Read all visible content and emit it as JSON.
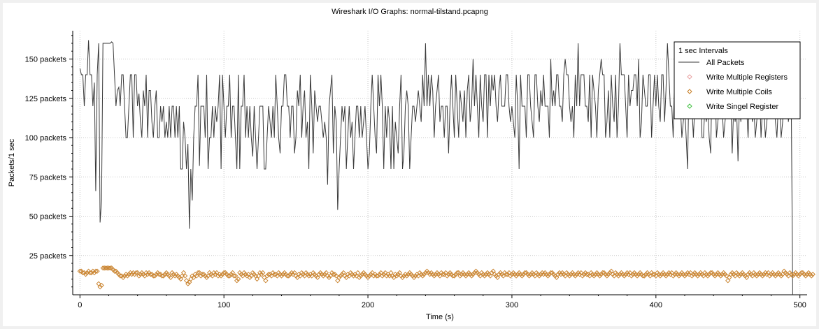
{
  "chart_data": {
    "type": "line",
    "title": "Wireshark I/O Graphs: normal-tilstand.pcapng",
    "xlabel": "Time (s)",
    "ylabel": "Packets/1 sec",
    "xlim": [
      -5,
      505
    ],
    "ylim": [
      0,
      168
    ],
    "x_ticks": [
      0,
      100,
      200,
      300,
      400,
      500
    ],
    "y_ticks": [
      25,
      50,
      75,
      100,
      125,
      150
    ],
    "y_tick_labels": [
      "25 packets",
      "50 packets",
      "75 packets",
      "100 packets",
      "125 packets",
      "150 packets"
    ],
    "grid": true,
    "legend": {
      "position": "top-right",
      "title": "1 sec Intervals",
      "entries": [
        {
          "name": "All Packets",
          "style": "line",
          "color": "#3a3a3a"
        },
        {
          "name": "Write Multiple Registers",
          "style": "diamond",
          "color": "#e8a0a0"
        },
        {
          "name": "Write Multiple Coils",
          "style": "diamond",
          "color": "#c8802a"
        },
        {
          "name": "Write Singel Register",
          "style": "diamond",
          "color": "#40c040"
        }
      ]
    },
    "series": [
      {
        "name": "All Packets",
        "x_start": 0,
        "x_step": 1,
        "values": [
          144,
          140,
          140,
          120,
          140,
          140,
          162,
          140,
          140,
          120,
          135,
          66,
          140,
          160,
          46,
          60,
          160,
          160,
          160,
          160,
          160,
          160,
          161,
          160,
          140,
          120,
          130,
          132,
          120,
          140,
          140,
          120,
          100,
          100,
          120,
          140,
          140,
          100,
          140,
          140,
          120,
          128,
          110,
          100,
          130,
          120,
          140,
          100,
          130,
          130,
          110,
          100,
          120,
          130,
          100,
          100,
          120,
          110,
          120,
          100,
          110,
          100,
          120,
          100,
          120,
          120,
          100,
          120,
          100,
          120,
          80,
          80,
          110,
          100,
          80,
          96,
          42,
          80,
          60,
          100,
          120,
          120,
          140,
          82,
          120,
          120,
          120,
          100,
          140,
          80,
          100,
          100,
          120,
          100,
          120,
          110,
          120,
          140,
          80,
          140,
          120,
          100,
          120,
          120,
          140,
          100,
          120,
          120,
          100,
          80,
          140,
          80,
          120,
          120,
          140,
          100,
          120,
          100,
          120,
          100,
          88,
          120,
          100,
          80,
          100,
          120,
          120,
          120,
          80,
          80,
          100,
          120,
          110,
          100,
          120,
          100,
          140,
          120,
          100,
          90,
          120,
          120,
          140,
          140,
          120,
          120,
          100,
          120,
          120,
          90,
          100,
          130,
          120,
          140,
          100,
          120,
          130,
          100,
          110,
          80,
          140,
          120,
          90,
          130,
          120,
          110,
          120,
          120,
          110,
          100,
          110,
          100,
          70,
          120,
          130,
          140,
          90,
          120,
          110,
          54,
          80,
          100,
          120,
          110,
          120,
          80,
          100,
          120,
          100,
          110,
          80,
          100,
          120,
          120,
          100,
          120,
          100,
          110,
          120,
          100,
          80,
          90,
          120,
          140,
          120,
          100,
          90,
          140,
          120,
          140,
          120,
          80,
          120,
          100,
          120,
          110,
          80,
          120,
          80,
          110,
          100,
          90,
          120,
          140,
          80,
          90,
          120,
          130,
          120,
          80,
          100,
          120,
          120,
          110,
          120,
          130,
          120,
          110,
          140,
          120,
          160,
          120,
          140,
          120,
          140,
          130,
          100,
          120,
          130,
          140,
          110,
          120,
          120,
          100,
          120,
          120,
          90,
          120,
          140,
          120,
          100,
          140,
          120,
          100,
          130,
          120,
          110,
          130,
          100,
          130,
          140,
          110,
          120,
          150,
          120,
          140,
          120,
          100,
          140,
          120,
          110,
          140,
          140,
          100,
          140,
          120,
          140,
          130,
          140,
          120,
          110,
          130,
          140,
          120,
          120,
          120,
          140,
          140,
          120,
          110,
          120,
          110,
          100,
          140,
          120,
          80,
          140,
          120,
          120,
          120,
          100,
          140,
          140,
          120,
          110,
          100,
          140,
          140,
          120,
          110,
          130,
          120,
          140,
          120,
          120,
          120,
          100,
          150,
          120,
          130,
          120,
          140,
          140,
          120,
          120,
          110,
          140,
          150,
          140,
          140,
          120,
          110,
          120,
          100,
          140,
          120,
          160,
          120,
          140,
          140,
          140,
          120,
          120,
          110,
          140,
          100,
          140,
          130,
          120,
          100,
          130,
          140,
          150,
          140,
          140,
          100,
          110,
          130,
          100,
          140,
          120,
          110,
          140,
          100,
          120,
          160,
          140,
          140,
          140,
          120,
          100,
          140,
          120,
          130,
          130,
          140,
          140,
          120,
          150,
          100,
          110,
          140,
          130,
          120,
          120,
          140,
          140,
          100,
          120,
          140,
          120,
          140,
          120,
          110,
          140,
          140,
          110,
          130,
          160,
          140,
          120,
          120,
          100,
          140,
          120,
          120,
          140,
          120,
          100,
          110,
          120,
          100,
          80,
          140,
          120,
          120,
          100,
          120,
          120,
          130,
          120,
          140,
          100,
          100,
          120,
          110,
          120,
          100,
          90,
          140,
          120,
          140,
          100,
          110,
          120,
          140,
          120,
          100,
          110,
          120,
          140,
          130,
          120,
          90,
          120,
          110,
          120,
          85,
          120,
          110,
          140,
          120,
          140,
          120,
          100,
          130,
          120,
          110,
          120,
          100,
          110,
          120,
          130,
          100,
          120,
          120,
          100,
          110,
          120,
          140,
          130,
          120,
          140,
          110,
          100,
          120,
          120,
          100,
          110,
          130,
          120,
          140,
          110,
          120,
          120,
          0
        ]
      },
      {
        "name": "Write Multiple Coils",
        "x_start": 0,
        "x_step": 1,
        "values": [
          15,
          15,
          14,
          14,
          13,
          14,
          15,
          14,
          14,
          15,
          14,
          15,
          15,
          7,
          5,
          6,
          17,
          17,
          17,
          17,
          17,
          17,
          17,
          16,
          15,
          15,
          14,
          13,
          12,
          12,
          11,
          12,
          13,
          12,
          13,
          14,
          13,
          14,
          13,
          14,
          14,
          12,
          13,
          14,
          13,
          12,
          14,
          13,
          14,
          13,
          13,
          12,
          12,
          13,
          14,
          13,
          13,
          12,
          12,
          13,
          14,
          13,
          12,
          11,
          14,
          13,
          12,
          13,
          12,
          11,
          10,
          12,
          14,
          12,
          9,
          7,
          8,
          10,
          12,
          11,
          13,
          12,
          14,
          14,
          12,
          13,
          13,
          12,
          11,
          12,
          14,
          13,
          12,
          14,
          13,
          14,
          12,
          13,
          12,
          13,
          14,
          14,
          13,
          12,
          12,
          13,
          14,
          12,
          12,
          9,
          10,
          14,
          13,
          12,
          14,
          13,
          12,
          13,
          11,
          12,
          14,
          13,
          12,
          10,
          12,
          14,
          13,
          14,
          11,
          9,
          12,
          13,
          13,
          12,
          14,
          13,
          13,
          12,
          14,
          13,
          12,
          13,
          14,
          13,
          12,
          12,
          13,
          14,
          13,
          14,
          12,
          11,
          13,
          12,
          14,
          13,
          12,
          14,
          13,
          12,
          13,
          12,
          14,
          13,
          12,
          11,
          13,
          14,
          13,
          12,
          13,
          14,
          12,
          11,
          12,
          14,
          13,
          13,
          12,
          9,
          11,
          12,
          13,
          14,
          12,
          11,
          13,
          12,
          14,
          13,
          12,
          13,
          12,
          14,
          11,
          12,
          13,
          14,
          13,
          12,
          11,
          12,
          13,
          14,
          12,
          13,
          12,
          12,
          13,
          14,
          12,
          13,
          14,
          12,
          13,
          12,
          14,
          12,
          11,
          13,
          12,
          13,
          14,
          12,
          11,
          12,
          13,
          12,
          13,
          14,
          13,
          12,
          11,
          12,
          13,
          12,
          14,
          13,
          12,
          13,
          14,
          15,
          14,
          13,
          14,
          13,
          12,
          13,
          14,
          13,
          12,
          14,
          13,
          13,
          14,
          12,
          13,
          14,
          13,
          12,
          12,
          13,
          14,
          14,
          12,
          13,
          14,
          13,
          12,
          13,
          14,
          13,
          12,
          13,
          14,
          15,
          14,
          13,
          12,
          14,
          13,
          12,
          13,
          14,
          13,
          12,
          14,
          15,
          13,
          12,
          11,
          13,
          14,
          13,
          12,
          14,
          13,
          13,
          14,
          12,
          13,
          14,
          13,
          12,
          13,
          14,
          13,
          12,
          13,
          14,
          14,
          13,
          12,
          13,
          14,
          13,
          12,
          14,
          13,
          12,
          13,
          14,
          13,
          14,
          13,
          12,
          13,
          14,
          14,
          13,
          12,
          11,
          13,
          14,
          13,
          14,
          13,
          12,
          14,
          13,
          12,
          13,
          14,
          13,
          12,
          13,
          14,
          13,
          14,
          12,
          13,
          14,
          13,
          13,
          12,
          14,
          13,
          12,
          13,
          14,
          13,
          12,
          13,
          14,
          14,
          13,
          12,
          13,
          14,
          15,
          13,
          12,
          14,
          13,
          12,
          13,
          14,
          13,
          12,
          13,
          14,
          13,
          14,
          12,
          13,
          14,
          13,
          12,
          13,
          14,
          13,
          12,
          12,
          13,
          14,
          13,
          12,
          14,
          13,
          13,
          12,
          14,
          13,
          12,
          13,
          14,
          13,
          12,
          13,
          14,
          13,
          14,
          12,
          13,
          14,
          13,
          12,
          13,
          14,
          13,
          12,
          13,
          14,
          13,
          14,
          12,
          13,
          14,
          13,
          12,
          13,
          14,
          13,
          12,
          14,
          13,
          12,
          13,
          14,
          14,
          13,
          12,
          13,
          14,
          13,
          12,
          13,
          14,
          13,
          12,
          9,
          11,
          13,
          14,
          13,
          12,
          14,
          13,
          12,
          13,
          14,
          13,
          12,
          11,
          13,
          14,
          13,
          12,
          14,
          13,
          12,
          13,
          14,
          13,
          12,
          13,
          14,
          13,
          14,
          12,
          13,
          14,
          13,
          12,
          13,
          14,
          13,
          12,
          13,
          15,
          14,
          13,
          12,
          14,
          13,
          12,
          13,
          14,
          13,
          12,
          13,
          14,
          14,
          13,
          12,
          13,
          14,
          13,
          12,
          13
        ]
      }
    ]
  }
}
